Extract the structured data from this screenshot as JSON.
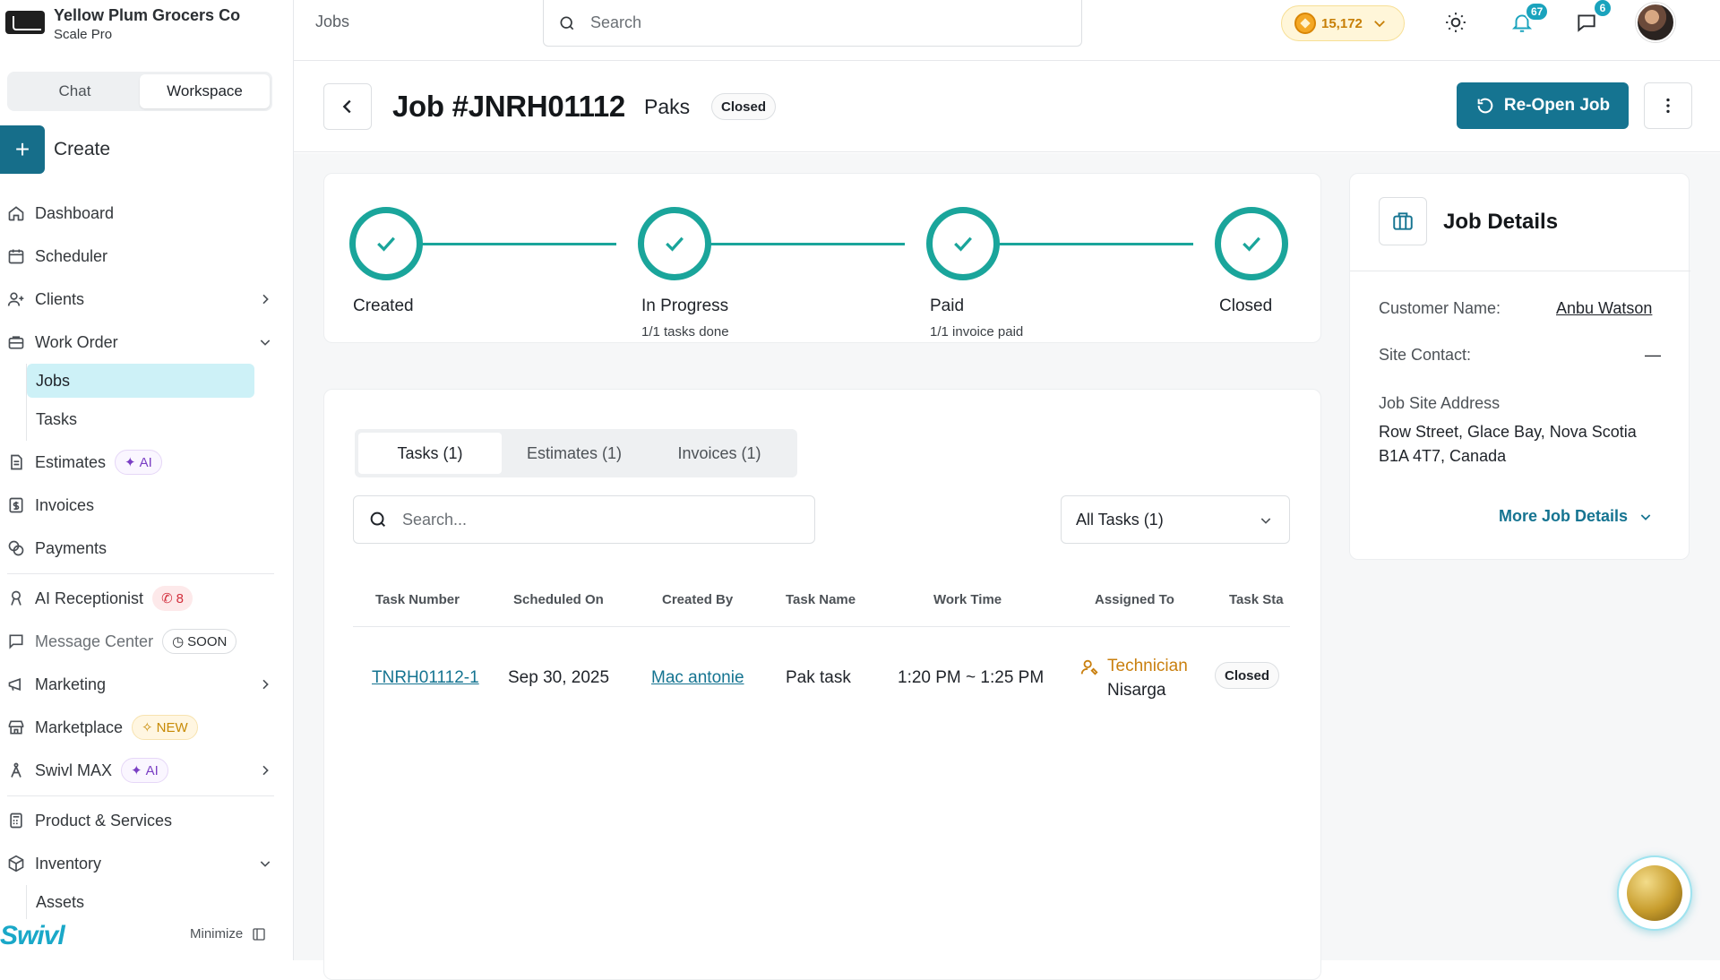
{
  "org": {
    "name": "Yellow Plum Grocers Co",
    "plan": "Scale Pro"
  },
  "mode_switch": {
    "chat": "Chat",
    "workspace": "Workspace",
    "selected": "Workspace"
  },
  "create_label": "Create",
  "nav": {
    "dashboard": "Dashboard",
    "scheduler": "Scheduler",
    "clients": "Clients",
    "work_order": "Work Order",
    "jobs": "Jobs",
    "tasks": "Tasks",
    "estimates": "Estimates",
    "estimates_badge": "AI",
    "invoices": "Invoices",
    "payments": "Payments",
    "ai_receptionist": "AI Receptionist",
    "ai_receptionist_badge": "8",
    "message_center": "Message Center",
    "message_center_badge": "SOON",
    "marketing": "Marketing",
    "marketplace": "Marketplace",
    "marketplace_badge": "NEW",
    "swivl_max": "Swivl MAX",
    "swivl_max_badge": "AI",
    "products": "Product & Services",
    "inventory": "Inventory",
    "assets": "Assets"
  },
  "brand": "Swivl",
  "minimize_label": "Minimize",
  "topbar": {
    "breadcrumb": "Jobs",
    "search_placeholder": "Search",
    "coins": "15,172",
    "notifications_count": "67",
    "messages_count": "6"
  },
  "job": {
    "title": "Job #JNRH01112",
    "client": "Paks",
    "status": "Closed",
    "reopen_label": "Re-Open Job"
  },
  "progress": {
    "steps": [
      {
        "label": "Created",
        "sub": ""
      },
      {
        "label": "In Progress",
        "sub": "1/1 tasks done"
      },
      {
        "label": "Paid",
        "sub": "1/1 invoice paid"
      },
      {
        "label": "Closed",
        "sub": ""
      }
    ]
  },
  "tabs": [
    "Tasks (1)",
    "Estimates (1)",
    "Invoices (1)"
  ],
  "tasks": {
    "search_placeholder": "Search...",
    "filter": "All Tasks (1)",
    "columns": [
      "Task Number",
      "Scheduled On",
      "Created By",
      "Task Name",
      "Work Time",
      "Assigned To",
      "Task Sta"
    ],
    "rows": [
      {
        "number": "TNRH01112-1",
        "scheduled": "Sep 30, 2025",
        "created_by": "Mac antonie",
        "name": "Pak task",
        "work_time": "1:20 PM ~ 1:25 PM",
        "assigned_role": "Technician",
        "assigned_name": "Nisarga",
        "status": "Closed"
      }
    ]
  },
  "job_details": {
    "title": "Job Details",
    "customer_label": "Customer Name:",
    "customer_value": "Anbu Watson",
    "site_contact_label": "Site Contact:",
    "site_contact_value": "—",
    "address_label": "Job Site Address",
    "address_line1": "Row Street, Glace Bay, Nova Scotia",
    "address_line2": "B1A 4T7, Canada",
    "more_label": "More Job Details"
  },
  "colors": {
    "primary": "#157491",
    "accent": "#1aa59b",
    "highlight": "#cdf1f7"
  }
}
